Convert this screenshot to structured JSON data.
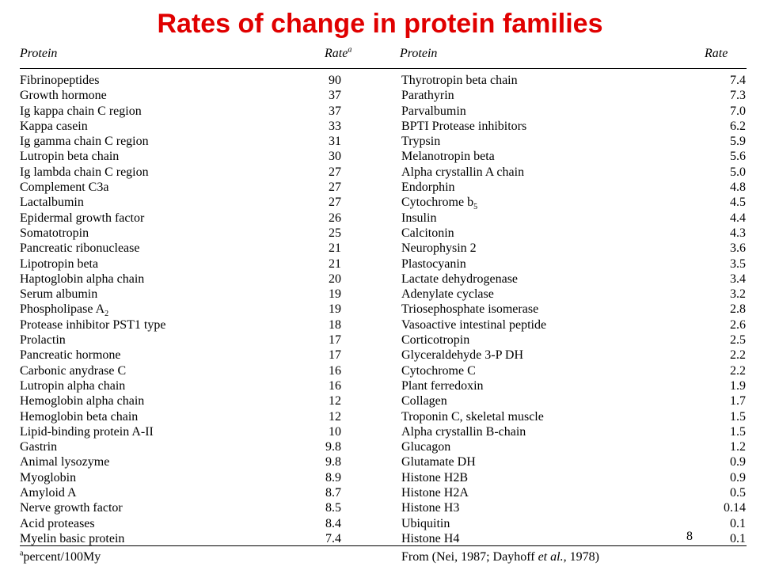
{
  "title": "Rates of change in protein families",
  "accent_color": "#e00000",
  "header": {
    "left_protein": "Protein",
    "left_rate": "Rate",
    "left_rate_sup": "a",
    "right_protein": "Protein",
    "right_rate": "Rate"
  },
  "left_rows": [
    {
      "name": "Fibrinopeptides",
      "rate": "90"
    },
    {
      "name": "Growth hormone",
      "rate": "37"
    },
    {
      "name": "Ig kappa chain C region",
      "rate": "37"
    },
    {
      "name": "Kappa casein",
      "rate": "33"
    },
    {
      "name": "Ig gamma chain C region",
      "rate": "31"
    },
    {
      "name": "Lutropin beta chain",
      "rate": "30"
    },
    {
      "name": "Ig lambda chain C region",
      "rate": "27"
    },
    {
      "name": "Complement C3a",
      "rate": "27"
    },
    {
      "name": "Lactalbumin",
      "rate": "27"
    },
    {
      "name": "Epidermal growth factor",
      "rate": "26"
    },
    {
      "name": "Somatotropin",
      "rate": "25"
    },
    {
      "name": "Pancreatic ribonuclease",
      "rate": "21"
    },
    {
      "name": "Lipotropin beta",
      "rate": "21"
    },
    {
      "name": "Haptoglobin alpha chain",
      "rate": "20"
    },
    {
      "name": "Serum albumin",
      "rate": "19"
    },
    {
      "name": "Phospholipase A",
      "sub": "2",
      "rate": "19"
    },
    {
      "name": "Protease inhibitor PST1 type",
      "rate": "18"
    },
    {
      "name": "Prolactin",
      "rate": "17"
    },
    {
      "name": "Pancreatic hormone",
      "rate": "17"
    },
    {
      "name": "Carbonic anydrase C",
      "rate": "16"
    },
    {
      "name": "Lutropin alpha chain",
      "rate": "16"
    },
    {
      "name": "Hemoglobin alpha chain",
      "rate": "12"
    },
    {
      "name": "Hemoglobin beta chain",
      "rate": "12"
    },
    {
      "name": "Lipid-binding protein A-II",
      "rate": "10"
    },
    {
      "name": "Gastrin",
      "rate": "9.8"
    },
    {
      "name": "Animal lysozyme",
      "rate": "9.8"
    },
    {
      "name": "Myoglobin",
      "rate": "8.9"
    },
    {
      "name": "Amyloid A",
      "rate": "8.7"
    },
    {
      "name": "Nerve growth factor",
      "rate": "8.5"
    },
    {
      "name": "Acid proteases",
      "rate": "8.4"
    },
    {
      "name": "Myelin basic protein",
      "rate": "7.4"
    }
  ],
  "right_rows": [
    {
      "name": "Thyrotropin beta chain",
      "rate": "7.4"
    },
    {
      "name": "Parathyrin",
      "rate": "7.3"
    },
    {
      "name": "Parvalbumin",
      "rate": "7.0"
    },
    {
      "name": "BPTI Protease inhibitors",
      "rate": "6.2"
    },
    {
      "name": "Trypsin",
      "rate": "5.9"
    },
    {
      "name": "Melanotropin beta",
      "rate": "5.6"
    },
    {
      "name": "Alpha crystallin A chain",
      "rate": "5.0"
    },
    {
      "name": "Endorphin",
      "rate": "4.8"
    },
    {
      "name": "Cytochrome b",
      "sub": "5",
      "rate": "4.5"
    },
    {
      "name": "Insulin",
      "rate": "4.4"
    },
    {
      "name": "Calcitonin",
      "rate": "4.3"
    },
    {
      "name": "Neurophysin 2",
      "rate": "3.6"
    },
    {
      "name": "Plastocyanin",
      "rate": "3.5"
    },
    {
      "name": "Lactate dehydrogenase",
      "rate": "3.4"
    },
    {
      "name": "Adenylate cyclase",
      "rate": "3.2"
    },
    {
      "name": "Triosephosphate isomerase",
      "rate": "2.8"
    },
    {
      "name": "Vasoactive intestinal peptide",
      "rate": "2.6"
    },
    {
      "name": "Corticotropin",
      "rate": "2.5"
    },
    {
      "name": "Glyceraldehyde 3-P DH",
      "rate": "2.2"
    },
    {
      "name": "Cytochrome C",
      "rate": "2.2"
    },
    {
      "name": "Plant ferredoxin",
      "rate": "1.9"
    },
    {
      "name": "Collagen",
      "rate": "1.7"
    },
    {
      "name": "Troponin C, skeletal muscle",
      "rate": "1.5"
    },
    {
      "name": "Alpha crystallin B-chain",
      "rate": "1.5"
    },
    {
      "name": "Glucagon",
      "rate": "1.2"
    },
    {
      "name": "Glutamate DH",
      "rate": "0.9"
    },
    {
      "name": "Histone H2B",
      "rate": "0.9"
    },
    {
      "name": "Histone H2A",
      "rate": "0.5"
    },
    {
      "name": "Histone H3",
      "rate": "0.14"
    },
    {
      "name": "Ubiquitin",
      "rate": "0.1"
    },
    {
      "name": "Histone H4",
      "rate": "0.1"
    }
  ],
  "page_number": "8",
  "footnote": {
    "sup": "a",
    "text": "percent/100My"
  },
  "source": {
    "prefix": "From (Nei, 1987; Dayhoff ",
    "italic": "et al.",
    "suffix": ", 1978)"
  }
}
